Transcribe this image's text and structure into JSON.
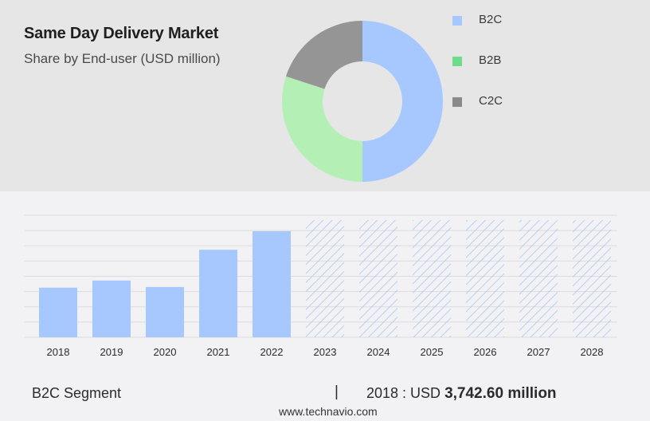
{
  "header": {
    "title": "Same Day Delivery Market",
    "subtitle": "Share by End-user (USD million)"
  },
  "colors": {
    "b2c": "#a6c8ff",
    "b2b": "#b4f0b6",
    "c2c": "#959595",
    "b2b_swatch": "#6fdc8c",
    "c2c_swatch": "#8a8a8a",
    "forecast_hatch": "#a9c6f5",
    "gridline": "#dcdcdc"
  },
  "legend": {
    "items": [
      {
        "label": "B2C",
        "color": "#a6c8ff"
      },
      {
        "label": "B2B",
        "color": "#6fdc8c"
      },
      {
        "label": "C2C",
        "color": "#8a8a8a"
      }
    ]
  },
  "chart_data": [
    {
      "type": "pie",
      "variant": "donut",
      "categories": [
        "B2C",
        "B2B",
        "C2C"
      ],
      "values": [
        50,
        30,
        20
      ],
      "legend_position": "right"
    },
    {
      "type": "bar",
      "categories": [
        "2018",
        "2019",
        "2020",
        "2021",
        "2022",
        "2023",
        "2024",
        "2025",
        "2026",
        "2027",
        "2028"
      ],
      "values": [
        3742.6,
        4280,
        3790,
        6600,
        8000,
        null,
        null,
        null,
        null,
        null,
        null
      ],
      "forecast_start": "2023",
      "forecast_style": "hatched",
      "series": [
        {
          "values": [
            3742.6,
            4280,
            3790,
            6600,
            8000,
            null,
            null,
            null,
            null,
            null,
            null
          ]
        }
      ],
      "ylim": [
        0,
        9200
      ],
      "grid": true
    }
  ],
  "footer": {
    "segment_label": "B2C Segment",
    "divider": "|",
    "year_prefix": "2018 : USD",
    "year_value": "3,742.60 million",
    "url": "www.technavio.com"
  }
}
